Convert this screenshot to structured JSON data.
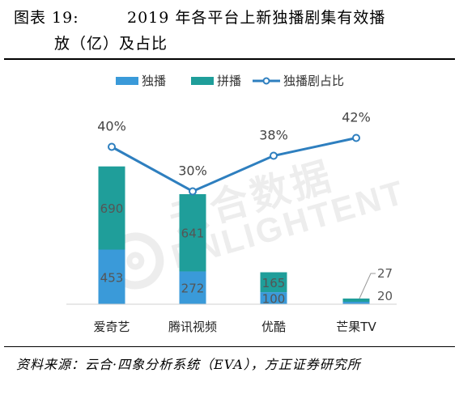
{
  "caption": {
    "label": "图表 19:",
    "title_line1": "2019 年各平台上新独播剧集有效播",
    "title_line2": "放（亿）及占比"
  },
  "source": "资料来源：云合·四象分析系统（EVA），方正证券研究所",
  "watermark": {
    "cn": "云合数据",
    "en": "ENLIGHTENT"
  },
  "colors": {
    "exclusive": "#3a9ad9",
    "pinbo": "#1f9e9a",
    "line": "#2e7fbf"
  },
  "chart_data": {
    "type": "bar",
    "stacked": true,
    "categories": [
      "爱奇艺",
      "腾讯视频",
      "优酷",
      "芒果TV"
    ],
    "series": [
      {
        "name": "独播",
        "values": [
          453,
          272,
          100,
          20
        ],
        "labels": [
          "453",
          "272",
          "100",
          "20"
        ]
      },
      {
        "name": "拼播",
        "values": [
          690,
          641,
          165,
          27
        ],
        "labels": [
          "690",
          "641",
          "165",
          "27"
        ]
      }
    ],
    "line_series": {
      "name": "独播剧占比",
      "values": [
        40,
        30,
        38,
        42
      ],
      "labels": [
        "40%",
        "30%",
        "38%",
        "42%"
      ]
    },
    "legend_position": "top",
    "grid": false
  }
}
